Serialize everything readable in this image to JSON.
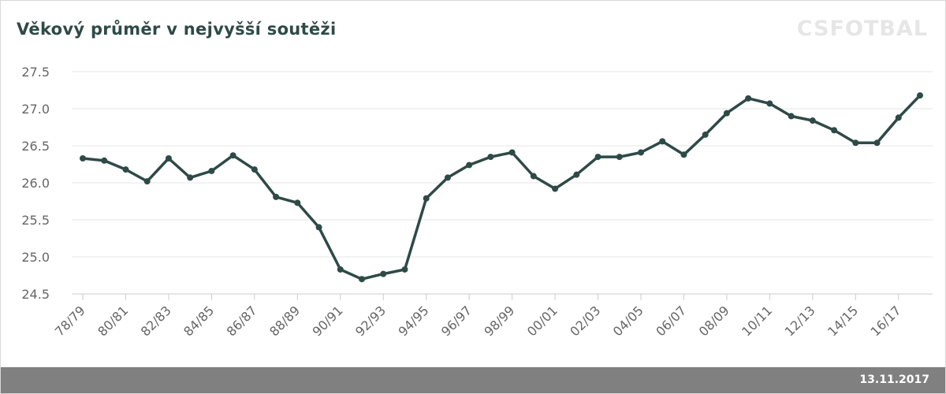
{
  "title": "Věkový průměr v nejvyšší soutěži",
  "watermark": "CSFOTBAL",
  "footer_date": "13.11.2017",
  "colors": {
    "line": "#2e4a47",
    "grid": "#e6e6e6",
    "footer": "#808080"
  },
  "chart_data": {
    "type": "line",
    "title": "Věkový průměr v nejvyšší soutěži",
    "xlabel": "",
    "ylabel": "",
    "ylim": [
      24.5,
      27.5
    ],
    "y_ticks": [
      "24.5",
      "25.0",
      "25.5",
      "26.0",
      "26.5",
      "27.0",
      "27.5"
    ],
    "x_tick_labels": [
      "78/79",
      "80/81",
      "82/83",
      "84/85",
      "86/87",
      "88/89",
      "90/91",
      "92/93",
      "94/95",
      "96/97",
      "98/99",
      "00/01",
      "02/03",
      "04/05",
      "06/07",
      "08/09",
      "10/11",
      "12/13",
      "14/15",
      "16/17"
    ],
    "grid": true,
    "categories": [
      "78/79",
      "79/80",
      "80/81",
      "81/82",
      "82/83",
      "83/84",
      "84/85",
      "85/86",
      "86/87",
      "87/88",
      "88/89",
      "89/90",
      "90/91",
      "91/92",
      "92/93",
      "93/94",
      "94/95",
      "95/96",
      "96/97",
      "97/98",
      "98/99",
      "99/00",
      "00/01",
      "01/02",
      "02/03",
      "03/04",
      "04/05",
      "05/06",
      "06/07",
      "07/08",
      "08/09",
      "09/10",
      "10/11",
      "11/12",
      "12/13",
      "13/14",
      "14/15",
      "15/16",
      "16/17",
      "17/18"
    ],
    "series": [
      {
        "values": [
          26.33,
          26.3,
          26.18,
          26.02,
          26.33,
          26.07,
          26.16,
          26.37,
          26.18,
          25.81,
          25.73,
          25.4,
          24.83,
          24.7,
          24.77,
          24.83,
          25.79,
          26.07,
          26.24,
          26.35,
          26.41,
          26.09,
          25.92,
          26.11,
          26.35,
          26.35,
          26.41,
          26.56,
          26.38,
          26.65,
          26.94,
          27.14,
          27.07,
          26.9,
          26.84,
          26.71,
          26.54,
          26.54,
          26.88,
          27.18
        ]
      }
    ]
  }
}
